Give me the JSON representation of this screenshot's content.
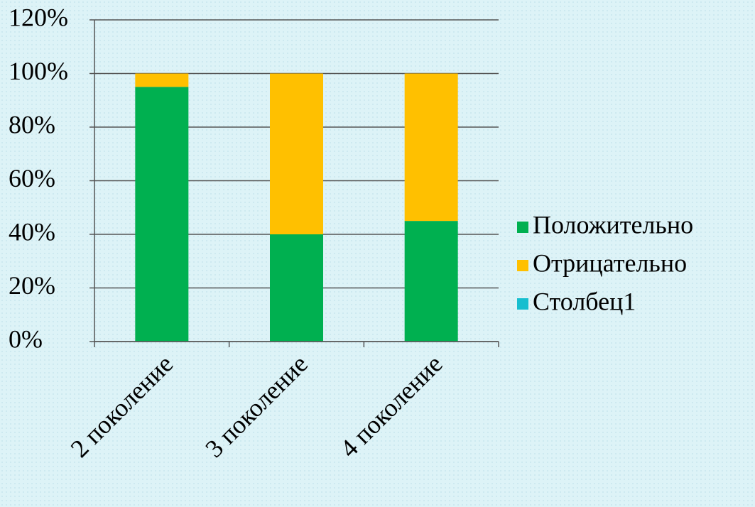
{
  "chart_data": {
    "type": "stacked_bar",
    "categories": [
      "2 поколение",
      "3 поколение",
      "4 поколение"
    ],
    "series": [
      {
        "name": "Положительно",
        "color": "#00b050",
        "values": [
          95,
          40,
          45
        ]
      },
      {
        "name": "Отрицательно",
        "color": "#ffc000",
        "values": [
          5,
          60,
          55
        ]
      },
      {
        "name": "Столбец1",
        "color": "#17becf",
        "values": [
          0,
          0,
          0
        ]
      }
    ],
    "ylim": [
      0,
      120
    ],
    "yticks": [
      {
        "value": 0,
        "label": "0%"
      },
      {
        "value": 20,
        "label": "20%"
      },
      {
        "value": 40,
        "label": "40%"
      },
      {
        "value": 60,
        "label": "60%"
      },
      {
        "value": 80,
        "label": "80%"
      },
      {
        "value": 100,
        "label": "100%"
      },
      {
        "value": 120,
        "label": "120%"
      }
    ],
    "grid": true,
    "legend": "right"
  }
}
